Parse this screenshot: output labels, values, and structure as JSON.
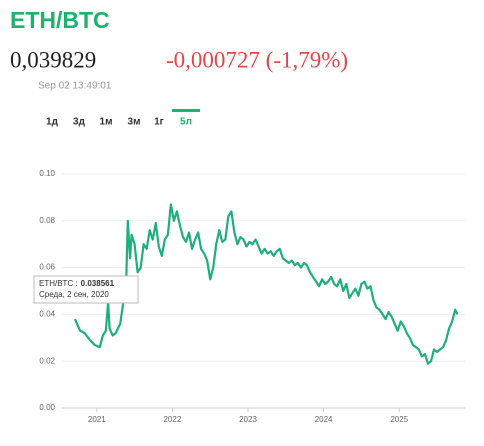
{
  "header": {
    "title": "ETH/BTC",
    "price": "0,039829",
    "change": "-0,000727 (-1,79%)",
    "timestamp": "Sep 02 13:49:01"
  },
  "tabs": {
    "items": [
      "1д",
      "3д",
      "1м",
      "3м",
      "1г",
      "5л"
    ],
    "active": 5
  },
  "chart_data": {
    "type": "line",
    "x": [
      2020.71,
      2020.78,
      2020.84,
      2020.91,
      2020.97,
      2021.04,
      2021.08,
      2021.12,
      2021.15,
      2021.17,
      2021.21,
      2021.25,
      2021.31,
      2021.35,
      2021.39,
      2021.41,
      2021.44,
      2021.46,
      2021.5,
      2021.54,
      2021.58,
      2021.62,
      2021.66,
      2021.7,
      2021.74,
      2021.78,
      2021.82,
      2021.86,
      2021.9,
      2021.94,
      2021.98,
      2022.02,
      2022.06,
      2022.1,
      2022.14,
      2022.18,
      2022.22,
      2022.26,
      2022.3,
      2022.34,
      2022.38,
      2022.42,
      2022.46,
      2022.5,
      2022.54,
      2022.58,
      2022.62,
      2022.66,
      2022.7,
      2022.74,
      2022.78,
      2022.82,
      2022.86,
      2022.9,
      2022.94,
      2022.98,
      2023.02,
      2023.06,
      2023.1,
      2023.14,
      2023.18,
      2023.22,
      2023.26,
      2023.3,
      2023.34,
      2023.38,
      2023.42,
      2023.46,
      2023.5,
      2023.54,
      2023.58,
      2023.62,
      2023.66,
      2023.7,
      2023.74,
      2023.78,
      2023.82,
      2023.86,
      2023.9,
      2023.94,
      2023.98,
      2024.02,
      2024.06,
      2024.1,
      2024.14,
      2024.18,
      2024.22,
      2024.26,
      2024.3,
      2024.34,
      2024.38,
      2024.42,
      2024.46,
      2024.5,
      2024.54,
      2024.58,
      2024.62,
      2024.66,
      2024.7,
      2024.74,
      2024.78,
      2024.82,
      2024.86,
      2024.9,
      2024.94,
      2024.98,
      2025.02,
      2025.06,
      2025.1,
      2025.14,
      2025.18,
      2025.22,
      2025.26,
      2025.3,
      2025.34,
      2025.38,
      2025.42,
      2025.46,
      2025.5,
      2025.54,
      2025.58,
      2025.62,
      2025.66,
      2025.7,
      2025.74,
      2025.77
    ],
    "series": [
      {
        "name": "ETH/BTC",
        "color": "#1fae7e",
        "values": [
          0.038,
          0.033,
          0.032,
          0.029,
          0.027,
          0.026,
          0.031,
          0.033,
          0.045,
          0.034,
          0.031,
          0.032,
          0.036,
          0.045,
          0.055,
          0.08,
          0.064,
          0.074,
          0.07,
          0.058,
          0.06,
          0.07,
          0.068,
          0.076,
          0.072,
          0.079,
          0.069,
          0.065,
          0.072,
          0.074,
          0.087,
          0.08,
          0.084,
          0.078,
          0.073,
          0.071,
          0.075,
          0.068,
          0.072,
          0.075,
          0.068,
          0.066,
          0.063,
          0.055,
          0.06,
          0.07,
          0.076,
          0.071,
          0.072,
          0.082,
          0.084,
          0.075,
          0.07,
          0.073,
          0.072,
          0.069,
          0.071,
          0.07,
          0.072,
          0.069,
          0.066,
          0.068,
          0.066,
          0.067,
          0.065,
          0.067,
          0.068,
          0.064,
          0.063,
          0.062,
          0.063,
          0.061,
          0.062,
          0.06,
          0.062,
          0.061,
          0.058,
          0.056,
          0.054,
          0.052,
          0.055,
          0.053,
          0.054,
          0.056,
          0.053,
          0.052,
          0.055,
          0.05,
          0.053,
          0.047,
          0.049,
          0.051,
          0.048,
          0.053,
          0.054,
          0.051,
          0.052,
          0.046,
          0.043,
          0.042,
          0.04,
          0.038,
          0.041,
          0.039,
          0.036,
          0.033,
          0.037,
          0.035,
          0.032,
          0.03,
          0.027,
          0.026,
          0.025,
          0.022,
          0.023,
          0.019,
          0.02,
          0.025,
          0.024,
          0.025,
          0.026,
          0.029,
          0.034,
          0.037,
          0.042,
          0.04
        ]
      }
    ],
    "xlim": [
      2020.54,
      2025.87
    ],
    "xticks": [
      2021,
      2022,
      2023,
      2024,
      2025
    ],
    "ylim": [
      0,
      0.1
    ],
    "yticks": [
      {
        "value": 0,
        "label": "0.00"
      },
      0.02,
      0.04,
      0.06,
      0.08,
      {
        "value": 0.1,
        "label": "0.10"
      }
    ],
    "grid": true,
    "tooltip": {
      "label": "ETH/BTC :",
      "value": 0.038561,
      "date": "Среда, 2 сен, 2020"
    }
  }
}
